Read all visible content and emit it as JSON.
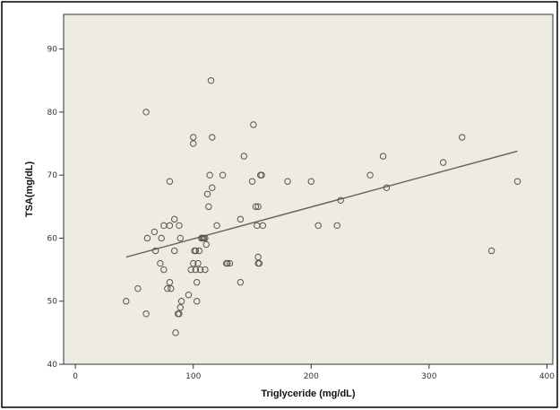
{
  "chart_data": {
    "type": "scatter",
    "title": "",
    "xlabel": "Triglyceride (mg/dL)",
    "ylabel": "TSA(mg/dL)",
    "xlim": [
      -10,
      405
    ],
    "ylim": [
      40,
      95.5
    ],
    "xticks": [
      0,
      100,
      200,
      300,
      400
    ],
    "yticks": [
      40,
      50,
      60,
      70,
      80,
      90
    ],
    "xtick_labels": [
      "0",
      "100",
      "200",
      "300",
      "400"
    ],
    "ytick_labels": [
      "40",
      "50",
      "60",
      "70",
      "80",
      "90"
    ],
    "grid": false,
    "plot_background": "#eeece0",
    "marker_color": "#555555",
    "fit_line": {
      "x": [
        43,
        375
      ],
      "y": [
        57,
        73.8
      ],
      "color": "#666666"
    },
    "points": [
      [
        43,
        50
      ],
      [
        53,
        52
      ],
      [
        60,
        48
      ],
      [
        61,
        60
      ],
      [
        60,
        80
      ],
      [
        67,
        61
      ],
      [
        68,
        58
      ],
      [
        72,
        56
      ],
      [
        73,
        60
      ],
      [
        75,
        55
      ],
      [
        75,
        62
      ],
      [
        78,
        52
      ],
      [
        80,
        62
      ],
      [
        80,
        53
      ],
      [
        80,
        69
      ],
      [
        81,
        52
      ],
      [
        84,
        63
      ],
      [
        84,
        58
      ],
      [
        85,
        45
      ],
      [
        87,
        48
      ],
      [
        88,
        48
      ],
      [
        88,
        62
      ],
      [
        89,
        49
      ],
      [
        89,
        60
      ],
      [
        90,
        50
      ],
      [
        96,
        51
      ],
      [
        98,
        55
      ],
      [
        100,
        56
      ],
      [
        100,
        76
      ],
      [
        100,
        75
      ],
      [
        101,
        58
      ],
      [
        102,
        58
      ],
      [
        102,
        55
      ],
      [
        103,
        53
      ],
      [
        103,
        50
      ],
      [
        104,
        56
      ],
      [
        105,
        58
      ],
      [
        106,
        55
      ],
      [
        107,
        60
      ],
      [
        107,
        60
      ],
      [
        108,
        60
      ],
      [
        109,
        60
      ],
      [
        110,
        60
      ],
      [
        110,
        55
      ],
      [
        111,
        59
      ],
      [
        112,
        67
      ],
      [
        113,
        65
      ],
      [
        114,
        70
      ],
      [
        115,
        85
      ],
      [
        116,
        76
      ],
      [
        116,
        68
      ],
      [
        120,
        62
      ],
      [
        125,
        70
      ],
      [
        128,
        56
      ],
      [
        129,
        56
      ],
      [
        131,
        56
      ],
      [
        140,
        63
      ],
      [
        140,
        53
      ],
      [
        143,
        73
      ],
      [
        150,
        69
      ],
      [
        151,
        78
      ],
      [
        153,
        65
      ],
      [
        154,
        62
      ],
      [
        155,
        65
      ],
      [
        155,
        57
      ],
      [
        155,
        56
      ],
      [
        156,
        56
      ],
      [
        157,
        70
      ],
      [
        158,
        70
      ],
      [
        159,
        62
      ],
      [
        180,
        69
      ],
      [
        200,
        69
      ],
      [
        206,
        62
      ],
      [
        222,
        62
      ],
      [
        225,
        66
      ],
      [
        250,
        70
      ],
      [
        261,
        73
      ],
      [
        264,
        68
      ],
      [
        312,
        72
      ],
      [
        328,
        76
      ],
      [
        353,
        58
      ],
      [
        375,
        69
      ]
    ]
  }
}
